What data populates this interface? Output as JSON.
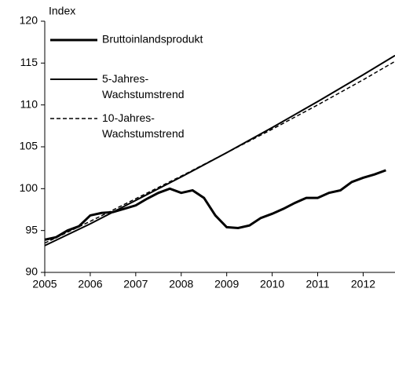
{
  "chart_data": {
    "type": "line",
    "y_label": "Index",
    "xlim": [
      2005,
      2012.7
    ],
    "xticks": [
      2005,
      2006,
      2007,
      2008,
      2009,
      2010,
      2011,
      2012
    ],
    "ylim": [
      90,
      120
    ],
    "yticks": [
      90,
      95,
      100,
      105,
      110,
      115,
      120
    ],
    "legend": "upper left",
    "series": [
      {
        "name": "Bruttoinlandsprodukt",
        "color": "#000000",
        "width": 3,
        "dash": "solid",
        "x": [
          2005,
          2005.25,
          2005.5,
          2005.75,
          2006,
          2006.25,
          2006.5,
          2006.75,
          2007,
          2007.25,
          2007.5,
          2007.75,
          2008,
          2008.25,
          2008.5,
          2008.75,
          2009,
          2009.25,
          2009.5,
          2009.75,
          2010,
          2010.25,
          2010.5,
          2010.75,
          2011,
          2011.25,
          2011.5,
          2011.75,
          2012,
          2012.25,
          2012.5
        ],
        "values": [
          93.9,
          94.2,
          95.0,
          95.5,
          96.8,
          97.1,
          97.2,
          97.6,
          98.0,
          98.8,
          99.5,
          100.0,
          99.5,
          99.8,
          98.9,
          96.8,
          95.4,
          95.3,
          95.6,
          96.5,
          97.0,
          97.6,
          98.3,
          98.9,
          98.9,
          99.5,
          99.8,
          100.8,
          101.3,
          101.7,
          102.2
        ]
      },
      {
        "name": "5-Jahres-Wachstumstrend",
        "color": "#000000",
        "width": 2,
        "dash": "solid",
        "x": [
          2005,
          2006,
          2007,
          2008,
          2009,
          2010,
          2011,
          2012,
          2012.7
        ],
        "values": [
          93.2,
          95.8,
          98.6,
          101.4,
          104.3,
          107.3,
          110.4,
          113.6,
          115.9
        ]
      },
      {
        "name": "10-Jahres-Wachstumstrend",
        "color": "#000000",
        "width": 1.5,
        "dash": "dashed",
        "x": [
          2005,
          2006,
          2007,
          2008,
          2009,
          2010,
          2011,
          2012,
          2012.7
        ],
        "values": [
          93.5,
          96.1,
          98.8,
          101.5,
          104.3,
          107.1,
          110.0,
          113.0,
          115.2
        ]
      }
    ]
  }
}
